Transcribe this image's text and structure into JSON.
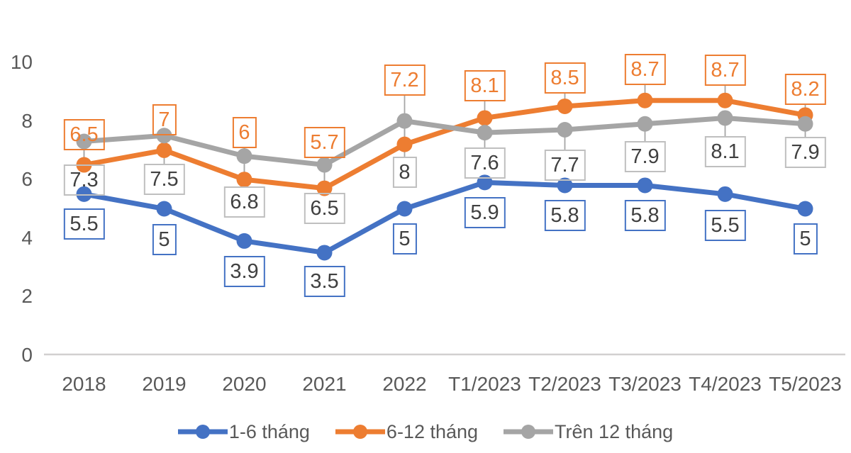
{
  "chart_data": {
    "type": "line",
    "title": "",
    "xlabel": "",
    "ylabel": "",
    "categories": [
      "2018",
      "2019",
      "2020",
      "2021",
      "2022",
      "T1/2023",
      "T2/2023",
      "T3/2023",
      "T4/2023",
      "T5/2023"
    ],
    "series": [
      {
        "name": "1-6 tháng",
        "color": "#4472C4",
        "values": [
          5.5,
          5,
          3.9,
          3.5,
          5,
          5.9,
          5.8,
          5.8,
          5.5,
          5
        ],
        "label_side": "below",
        "box_border_color": "#4472C4",
        "label_text_color": "#404040",
        "label_offsets": [
          42,
          43,
          43,
          41,
          42,
          43,
          43,
          43,
          44,
          42
        ],
        "leader_lines": false
      },
      {
        "name": "6-12 tháng",
        "color": "#ED7D31",
        "values": [
          6.5,
          7,
          6,
          5.7,
          7.2,
          8.1,
          8.5,
          8.7,
          8.7,
          8.2
        ],
        "label_side": "above",
        "box_border_color": "#ED7D31",
        "label_text_color": "#ED7D31",
        "label_offsets": [
          -43,
          -43,
          -66,
          -65,
          -91,
          -45,
          -40,
          -44,
          -43,
          -36
        ],
        "leader_lines": true
      },
      {
        "name": "Trên 12 tháng",
        "color": "#A5A5A5",
        "values": [
          7.3,
          7.5,
          6.8,
          6.5,
          8,
          7.6,
          7.7,
          7.9,
          8.1,
          7.9
        ],
        "label_side": "below",
        "box_border_color": "#BFBFBF",
        "label_text_color": "#404040",
        "label_offsets": [
          54,
          62,
          65,
          61,
          72,
          43,
          50,
          46,
          48,
          40
        ],
        "leader_lines": true
      }
    ],
    "y_ticks": [
      0,
      2,
      4,
      6,
      8,
      10
    ],
    "ylim": [
      0,
      10
    ],
    "grid": false,
    "legend_position": "bottom",
    "axis_line_color": "#D2D0D0",
    "leader_line_color": "#A6A6A6",
    "tick_text_color": "#595959"
  }
}
